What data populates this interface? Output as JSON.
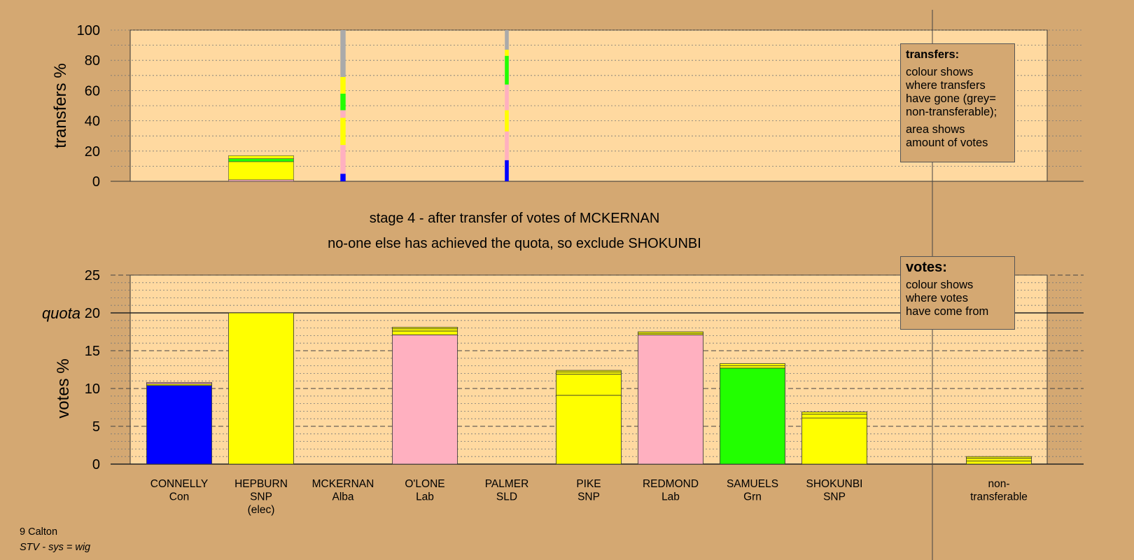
{
  "stage_title": "stage 4 - after transfer of votes of MCKERNAN",
  "stage_subtitle": "no-one else has achieved the quota, so exclude SHOKUNBI",
  "colors": {
    "Con": "#0000ff",
    "SNP": "#ffff00",
    "Alba": "#4682b4",
    "Lab": "#ffb0c0",
    "SLD": "#ffa500",
    "Grn": "#22ff00",
    "non-transferable": "#aaaaaa",
    "background": "#d4a872",
    "plot_area": "#ffd9a0"
  },
  "chart_data": [
    {
      "type": "bar",
      "name": "transfers",
      "ylabel": "transfers %",
      "ylim": [
        0,
        100
      ],
      "yticks": [
        0,
        20,
        40,
        60,
        80,
        100
      ],
      "grid": "dotted",
      "categories": [
        "CONNELLY",
        "HEPBURN",
        "MCKERNAN",
        "O'LONE",
        "PALMER",
        "PIKE",
        "REDMOND",
        "SAMUELS",
        "SHOKUNBI"
      ],
      "note": "colour shows where transfers have gone",
      "bars": [
        {
          "category": "HEPBURN",
          "width_fraction": 1.0,
          "segments": [
            {
              "party": "Lab",
              "value": 1
            },
            {
              "party": "SNP",
              "value": 12
            },
            {
              "party": "Grn",
              "value": 2
            },
            {
              "party": "SNP",
              "value": 2
            }
          ]
        },
        {
          "category": "MCKERNAN",
          "width_fraction": 0.08,
          "segments": [
            {
              "party": "Con",
              "value": 5
            },
            {
              "party": "Lab",
              "value": 19
            },
            {
              "party": "SNP",
              "value": 18
            },
            {
              "party": "Lab",
              "value": 5
            },
            {
              "party": "Grn",
              "value": 11
            },
            {
              "party": "SNP",
              "value": 11
            },
            {
              "party": "non-transferable",
              "value": 31
            }
          ]
        },
        {
          "category": "PALMER",
          "width_fraction": 0.06,
          "segments": [
            {
              "party": "Con",
              "value": 14
            },
            {
              "party": "Lab",
              "value": 19
            },
            {
              "party": "SNP",
              "value": 14
            },
            {
              "party": "Lab",
              "value": 17
            },
            {
              "party": "Grn",
              "value": 19
            },
            {
              "party": "SNP",
              "value": 4
            },
            {
              "party": "non-transferable",
              "value": 13
            }
          ]
        }
      ]
    },
    {
      "type": "bar",
      "name": "votes",
      "ylabel": "votes %",
      "ylim": [
        0,
        25
      ],
      "yticks": [
        0,
        5,
        10,
        15,
        20,
        25
      ],
      "quota": 20,
      "quota_label": "quota",
      "grid": "dashed",
      "categories": [
        "CONNELLY",
        "HEPBURN",
        "MCKERNAN",
        "O'LONE",
        "PALMER",
        "PIKE",
        "REDMOND",
        "SAMUELS",
        "SHOKUNBI",
        "non-transferable"
      ],
      "parties": [
        "Con",
        "SNP",
        "Alba",
        "Lab",
        "SLD",
        "SNP",
        "Lab",
        "Grn",
        "SNP",
        ""
      ],
      "labels": [
        "CONNELLY\nCon",
        "HEPBURN\nSNP\n(elec)",
        "MCKERNAN\nAlba",
        "O'LONE\nLab",
        "PALMER\nSLD",
        "PIKE\nSNP",
        "REDMOND\nLab",
        "SAMUELS\nGrn",
        "SHOKUNBI\nSNP",
        "non-\ntransferable"
      ],
      "stacks": [
        [
          {
            "party": "Con",
            "value": 10.4
          },
          {
            "party": "SNP",
            "value": 0.2
          },
          {
            "party": "Lab",
            "value": 0.2
          }
        ],
        [
          {
            "party": "SNP",
            "value": 20.0
          }
        ],
        [],
        [
          {
            "party": "Lab",
            "value": 17.1
          },
          {
            "party": "SNP",
            "value": 0.5
          },
          {
            "party": "SNP",
            "value": 0.3
          },
          {
            "party": "SNP",
            "value": 0.2
          }
        ],
        [],
        [
          {
            "party": "SNP",
            "value": 9.1
          },
          {
            "party": "SNP",
            "value": 2.8
          },
          {
            "party": "SNP",
            "value": 0.3
          },
          {
            "party": "SNP",
            "value": 0.2
          }
        ],
        [
          {
            "party": "Lab",
            "value": 17.1
          },
          {
            "party": "SNP",
            "value": 0.2
          },
          {
            "party": "SNP",
            "value": 0.2
          }
        ],
        [
          {
            "party": "Grn",
            "value": 12.7
          },
          {
            "party": "SNP",
            "value": 0.3
          },
          {
            "party": "SNP",
            "value": 0.3
          }
        ],
        [
          {
            "party": "SNP",
            "value": 6.1
          },
          {
            "party": "SNP",
            "value": 0.5
          },
          {
            "party": "SNP",
            "value": 0.3
          }
        ],
        [
          {
            "party": "SNP",
            "value": 0.4
          },
          {
            "party": "SNP",
            "value": 0.4
          },
          {
            "party": "SNP",
            "value": 0.2
          }
        ]
      ]
    }
  ],
  "legend_transfers": {
    "title": "transfers:",
    "body1": "colour shows\nwhere transfers\nhave gone (grey=\nnon-transferable);",
    "body2": "area shows\namount of votes"
  },
  "legend_votes": {
    "title": "votes:",
    "body": "colour shows\nwhere votes\nhave come from"
  },
  "footer": {
    "constituency": "9 Calton",
    "system": "STV - sys = wig"
  }
}
